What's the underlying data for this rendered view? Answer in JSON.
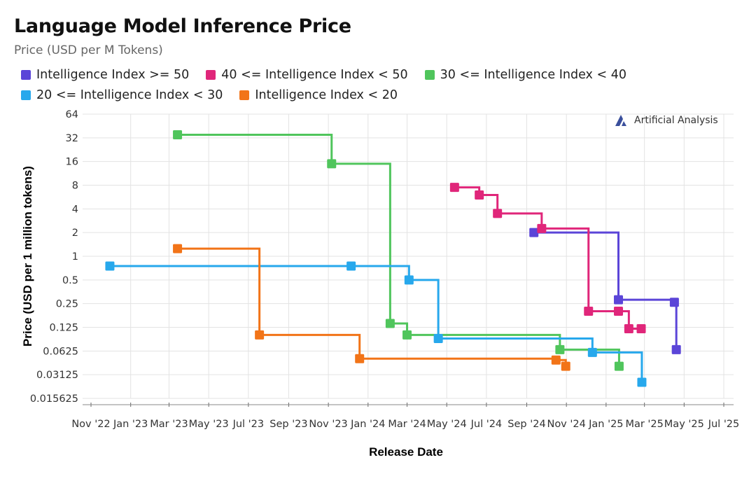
{
  "title": "Language Model Inference Price",
  "subtitle": "Price (USD per M Tokens)",
  "watermark": "Artificial Analysis",
  "legend_rows": [
    [
      {
        "label": "Intelligence Index >= 50",
        "color": "#5b45d8"
      },
      {
        "label": "40 <= Intelligence Index < 50",
        "color": "#e0267a"
      },
      {
        "label": "30 <= Intelligence Index < 40",
        "color": "#50c55c"
      }
    ],
    [
      {
        "label": "20 <= Intelligence Index < 30",
        "color": "#27a8ec"
      },
      {
        "label": "Intelligence Index < 20",
        "color": "#f27418"
      }
    ]
  ],
  "chart_data": {
    "type": "line",
    "step": "horizontal-then-vertical",
    "xlabel": "Release Date",
    "ylabel": "Price (USD per 1 million tokens)",
    "yscale": "log2",
    "ylim": [
      0.015625,
      64
    ],
    "xlim": [
      "2022-11-01",
      "2025-07-01"
    ],
    "yticks": [
      {
        "value": 64,
        "label": "64"
      },
      {
        "value": 32,
        "label": "32"
      },
      {
        "value": 16,
        "label": "16"
      },
      {
        "value": 8,
        "label": "8"
      },
      {
        "value": 4,
        "label": "4"
      },
      {
        "value": 2,
        "label": "2"
      },
      {
        "value": 1,
        "label": "1"
      },
      {
        "value": 0.5,
        "label": "0.5"
      },
      {
        "value": 0.25,
        "label": "0.25"
      },
      {
        "value": 0.125,
        "label": "0.125"
      },
      {
        "value": 0.0625,
        "label": "0.0625"
      },
      {
        "value": 0.03125,
        "label": "0.03125"
      },
      {
        "value": 0.015625,
        "label": "0.015625"
      }
    ],
    "xticks": [
      {
        "date": "2022-11-01",
        "label": "Nov '22"
      },
      {
        "date": "2023-01-01",
        "label": "Jan '23"
      },
      {
        "date": "2023-03-01",
        "label": "Mar '23"
      },
      {
        "date": "2023-05-01",
        "label": "May '23"
      },
      {
        "date": "2023-07-01",
        "label": "Jul '23"
      },
      {
        "date": "2023-09-01",
        "label": "Sep '23"
      },
      {
        "date": "2023-11-01",
        "label": "Nov '23"
      },
      {
        "date": "2024-01-01",
        "label": "Jan '24"
      },
      {
        "date": "2024-03-01",
        "label": "Mar '24"
      },
      {
        "date": "2024-05-01",
        "label": "May '24"
      },
      {
        "date": "2024-07-01",
        "label": "Jul '24"
      },
      {
        "date": "2024-09-01",
        "label": "Sep '24"
      },
      {
        "date": "2024-11-01",
        "label": "Nov '24"
      },
      {
        "date": "2025-01-01",
        "label": "Jan '25"
      },
      {
        "date": "2025-03-01",
        "label": "Mar '25"
      },
      {
        "date": "2025-05-01",
        "label": "May '25"
      },
      {
        "date": "2025-07-01",
        "label": "Jul '25"
      }
    ],
    "grid": true,
    "legend_position": "top",
    "series": [
      {
        "name": "Intelligence Index >= 50",
        "color": "#5b45d8",
        "points": [
          {
            "date": "2024-09-12",
            "y": 2.0
          },
          {
            "date": "2025-01-20",
            "y": 0.28
          },
          {
            "date": "2025-04-16",
            "y": 0.26
          },
          {
            "date": "2025-04-19",
            "y": 0.065
          }
        ]
      },
      {
        "name": "40 <= Intelligence Index < 50",
        "color": "#e0267a",
        "points": [
          {
            "date": "2024-05-13",
            "y": 7.5
          },
          {
            "date": "2024-06-20",
            "y": 6.0
          },
          {
            "date": "2024-07-18",
            "y": 3.5
          },
          {
            "date": "2024-09-24",
            "y": 2.25
          },
          {
            "date": "2024-12-05",
            "y": 0.2
          },
          {
            "date": "2025-01-20",
            "y": 0.2
          },
          {
            "date": "2025-02-05",
            "y": 0.12
          },
          {
            "date": "2025-02-24",
            "y": 0.12
          }
        ]
      },
      {
        "name": "30 <= Intelligence Index < 40",
        "color": "#50c55c",
        "points": [
          {
            "date": "2023-03-14",
            "y": 35.0
          },
          {
            "date": "2023-11-06",
            "y": 15.0
          },
          {
            "date": "2024-02-04",
            "y": 0.14
          },
          {
            "date": "2024-03-01",
            "y": 0.1
          },
          {
            "date": "2024-10-22",
            "y": 0.065
          },
          {
            "date": "2025-01-21",
            "y": 0.04
          }
        ]
      },
      {
        "name": "20 <= Intelligence Index < 30",
        "color": "#27a8ec",
        "points": [
          {
            "date": "2022-11-30",
            "y": 0.75
          },
          {
            "date": "2023-12-06",
            "y": 0.75
          },
          {
            "date": "2024-03-04",
            "y": 0.5
          },
          {
            "date": "2024-04-18",
            "y": 0.09
          },
          {
            "date": "2024-12-11",
            "y": 0.06
          },
          {
            "date": "2025-02-25",
            "y": 0.025
          }
        ]
      },
      {
        "name": "Intelligence Index < 20",
        "color": "#f27418",
        "points": [
          {
            "date": "2023-03-14",
            "y": 1.25
          },
          {
            "date": "2023-07-18",
            "y": 0.1
          },
          {
            "date": "2023-12-19",
            "y": 0.05
          },
          {
            "date": "2024-10-16",
            "y": 0.048
          },
          {
            "date": "2024-10-31",
            "y": 0.04
          }
        ]
      }
    ]
  }
}
